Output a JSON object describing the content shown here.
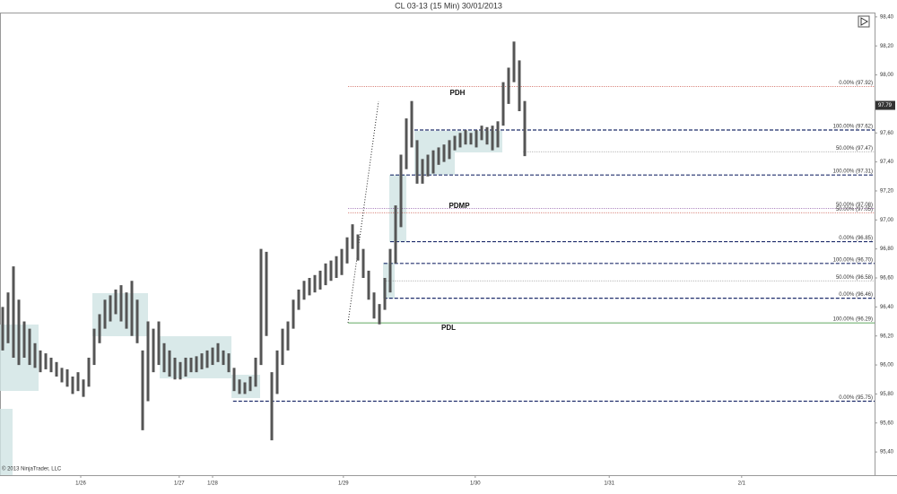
{
  "chart_data": {
    "type": "ohlc",
    "title": "CL 03-13 (15 Min)  30/01/2013",
    "copyright": "© 2013 NinjaTrader, LLC",
    "ylim": [
      95.24,
      98.43
    ],
    "xlim": [
      -0.5,
      162
    ],
    "yticks": [
      {
        "value": 98.4,
        "label": "98,40"
      },
      {
        "value": 98.2,
        "label": "98,20"
      },
      {
        "value": 98.0,
        "label": "98,00"
      },
      {
        "value": 97.8,
        "label": "97,80"
      },
      {
        "value": 97.6,
        "label": "97,60"
      },
      {
        "value": 97.4,
        "label": "97,40"
      },
      {
        "value": 97.2,
        "label": "97,20"
      },
      {
        "value": 97.0,
        "label": "97,00"
      },
      {
        "value": 96.8,
        "label": "96,80"
      },
      {
        "value": 96.6,
        "label": "96,60"
      },
      {
        "value": 96.4,
        "label": "96,40"
      },
      {
        "value": 96.2,
        "label": "96,20"
      },
      {
        "value": 96.0,
        "label": "96,00"
      },
      {
        "value": 95.8,
        "label": "95,80"
      },
      {
        "value": 95.6,
        "label": "95,60"
      },
      {
        "value": 95.4,
        "label": "95,40"
      }
    ],
    "xticks": [
      {
        "value": 14.5,
        "label": "1/26"
      },
      {
        "value": 32.8,
        "label": "1/27"
      },
      {
        "value": 39,
        "label": "1/28"
      },
      {
        "value": 63.3,
        "label": "1/29"
      },
      {
        "value": 87.8,
        "label": "1/30"
      },
      {
        "value": 112.7,
        "label": "1/31"
      },
      {
        "value": 137.3,
        "label": "2/1"
      }
    ],
    "color": "#555555",
    "low": [
      96.1,
      96.15,
      96.05,
      96.0,
      96.05,
      96.0,
      95.98,
      95.95,
      95.97,
      95.95,
      95.92,
      95.88,
      95.85,
      95.8,
      95.82,
      95.78,
      95.85,
      96.0,
      96.15,
      96.25,
      96.3,
      96.35,
      96.3,
      96.25,
      96.2,
      96.15,
      95.55,
      95.75,
      95.95,
      96.0,
      95.95,
      95.92,
      95.9,
      95.9,
      95.92,
      95.95,
      95.95,
      95.97,
      95.98,
      96.0,
      96.02,
      96.0,
      95.95,
      95.82,
      95.8,
      95.8,
      95.82,
      95.85,
      96.0,
      96.2,
      95.48,
      95.8,
      96.0,
      96.1,
      96.25,
      96.38,
      96.45,
      96.48,
      96.5,
      96.52,
      96.55,
      96.58,
      96.6,
      96.62,
      96.7,
      96.8,
      96.72,
      96.6,
      96.45,
      96.32,
      96.28,
      96.38,
      96.5,
      96.7,
      96.95,
      97.35,
      97.5,
      97.25,
      97.25,
      97.3,
      97.32,
      97.38,
      97.4,
      97.42,
      97.48,
      97.5,
      97.52,
      97.52,
      97.5,
      97.55,
      97.52,
      97.48,
      97.5,
      97.65,
      97.8,
      97.95,
      97.75,
      97.44
    ],
    "high": [
      96.4,
      96.5,
      96.68,
      96.45,
      96.3,
      96.25,
      96.15,
      96.1,
      96.08,
      96.05,
      96.02,
      95.98,
      95.97,
      95.92,
      95.95,
      95.9,
      96.05,
      96.25,
      96.35,
      96.45,
      96.48,
      96.52,
      96.55,
      96.5,
      96.58,
      96.45,
      96.1,
      96.3,
      96.25,
      96.3,
      96.15,
      96.1,
      96.05,
      96.02,
      96.05,
      96.05,
      96.06,
      96.08,
      96.1,
      96.12,
      96.15,
      96.1,
      96.08,
      95.98,
      95.9,
      95.88,
      95.92,
      96.05,
      96.8,
      96.78,
      95.95,
      96.1,
      96.25,
      96.3,
      96.45,
      96.52,
      96.58,
      96.6,
      96.62,
      96.65,
      96.7,
      96.72,
      96.75,
      96.8,
      96.88,
      96.97,
      96.9,
      96.8,
      96.65,
      96.5,
      96.42,
      96.6,
      96.8,
      97.1,
      97.45,
      97.7,
      97.82,
      97.55,
      97.42,
      97.45,
      97.48,
      97.5,
      97.52,
      97.55,
      97.58,
      97.6,
      97.62,
      97.6,
      97.62,
      97.65,
      97.64,
      97.65,
      97.68,
      97.95,
      98.05,
      98.23,
      98.1,
      97.82
    ],
    "last": 97.79,
    "levels": [
      {
        "value": 97.92,
        "label": "0.00% (97.92)",
        "color": "#c0392b",
        "style": "dotted",
        "start": 64.2
      },
      {
        "value": 97.62,
        "label": "100.00% (97.62)",
        "color": "#1f2d6b",
        "style": "dashed",
        "start": 76.5
      },
      {
        "value": 97.47,
        "label": "50.00% (97.47)",
        "color": "#888888",
        "style": "dotted",
        "start": 96.7
      },
      {
        "value": 97.31,
        "label": "100.00% (97.31)",
        "color": "#1f2d6b",
        "style": "dashed",
        "start": 72
      },
      {
        "value": 97.08,
        "label": "50.00% (97.08)",
        "color": "#7d3c98",
        "style": "dotted",
        "start": 64.2
      },
      {
        "value": 97.05,
        "label": "50.00% (97.05)",
        "color": "#c0392b",
        "style": "dotted",
        "start": 64.2
      },
      {
        "value": 96.85,
        "label": "0.00% (96.85)",
        "color": "#1f2d6b",
        "style": "dashed",
        "start": 72
      },
      {
        "value": 96.7,
        "label": "100.00% (96.70)",
        "color": "#1f2d6b",
        "style": "dashed",
        "start": 70.8
      },
      {
        "value": 96.58,
        "label": "50.00% (96.58)",
        "color": "#888888",
        "style": "dotted",
        "start": 70.8
      },
      {
        "value": 96.46,
        "label": "0.00% (96.46)",
        "color": "#1f2d6b",
        "style": "dashed",
        "start": 70.8
      },
      {
        "value": 96.29,
        "label": "100.00% (96.29)",
        "color": "#2e8b2e",
        "style": "solid",
        "start": 64.2
      },
      {
        "value": 95.75,
        "label": "0.00% (95.75)",
        "color": "#1f2d6b",
        "style": "dashed",
        "start": 42.8
      }
    ],
    "annotations": [
      "PDH",
      "PDMP",
      "PDL"
    ]
  }
}
